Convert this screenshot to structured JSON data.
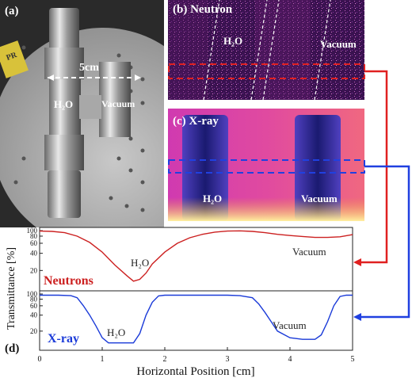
{
  "photo": {
    "label": "(a)",
    "scale_text": "5cm",
    "h2o_label": "H₂O",
    "vacuum_label": "Vacuum",
    "tag_text": "PR"
  },
  "neutron_image": {
    "label": "(b) Neutron",
    "h2o_label": "H₂O",
    "vacuum_label": "Vacuum",
    "box_color": "#e02020"
  },
  "xray_image": {
    "label": "(c) X-ray",
    "h2o_label": "H₂O",
    "vacuum_label": "Vacuum",
    "box_color": "#2040e0"
  },
  "plot": {
    "label": "(d)",
    "xlabel": "Horizontal Position [cm]",
    "ylabel": "Transmittance [%]",
    "xticks": [
      "0",
      "1",
      "2",
      "3",
      "4",
      "5"
    ]
  },
  "chart_data": [
    {
      "type": "line",
      "name": "Neutrons",
      "color": "#cc2020",
      "yscale": "log",
      "xlim": [
        0,
        5
      ],
      "ylim": [
        10,
        100
      ],
      "yticks": [
        "100",
        "80",
        "60",
        "40",
        "20"
      ],
      "annotations": [
        "H₂O",
        "Vacuum"
      ],
      "x": [
        0,
        0.2,
        0.4,
        0.6,
        0.8,
        1.0,
        1.2,
        1.4,
        1.5,
        1.6,
        1.7,
        1.8,
        2.0,
        2.2,
        2.4,
        2.6,
        2.8,
        3.0,
        3.2,
        3.4,
        3.6,
        3.8,
        4.0,
        4.2,
        4.4,
        4.6,
        4.8,
        5.0
      ],
      "y": [
        98,
        97,
        92,
        80,
        62,
        42,
        25,
        16,
        13,
        14,
        18,
        26,
        42,
        60,
        75,
        86,
        94,
        98,
        99,
        97,
        92,
        86,
        82,
        79,
        76,
        76,
        78,
        85
      ]
    },
    {
      "type": "line",
      "name": "X-ray",
      "color": "#1a3ad8",
      "yscale": "log",
      "xlim": [
        0,
        5
      ],
      "ylim": [
        10,
        100
      ],
      "yticks": [
        "100",
        "80",
        "60",
        "40",
        "20"
      ],
      "annotations": [
        "H₂O",
        "Vacuum"
      ],
      "x": [
        0,
        0.3,
        0.5,
        0.6,
        0.7,
        0.8,
        0.9,
        1.0,
        1.1,
        1.3,
        1.5,
        1.6,
        1.7,
        1.8,
        1.9,
        2.0,
        2.5,
        3.0,
        3.2,
        3.4,
        3.5,
        3.6,
        3.7,
        3.8,
        4.0,
        4.2,
        4.4,
        4.5,
        4.6,
        4.7,
        4.8,
        4.9,
        5.0
      ],
      "y": [
        95,
        95,
        93,
        85,
        60,
        40,
        25,
        15,
        12,
        12,
        12,
        18,
        40,
        70,
        92,
        95,
        95,
        95,
        93,
        85,
        65,
        45,
        30,
        20,
        15,
        14,
        14,
        17,
        30,
        60,
        90,
        95,
        95
      ]
    }
  ]
}
